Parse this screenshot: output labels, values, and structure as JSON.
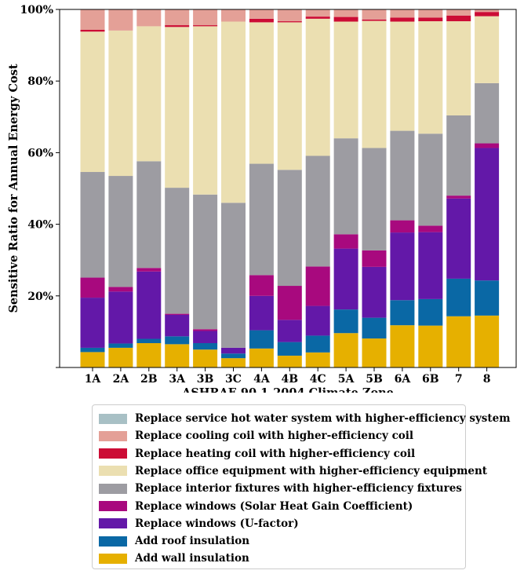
{
  "chart_data": {
    "type": "bar",
    "stacked": true,
    "xlabel": "ASHRAE 90.1-2004 Climate Zone",
    "ylabel": "Sensitive Ratio for Annual Energy Cost",
    "ylim": [
      0,
      100
    ],
    "y_ticks": [
      0,
      20,
      40,
      60,
      80,
      100
    ],
    "y_tick_labels": [
      "",
      "20%",
      "40%",
      "60%",
      "80%",
      "100%"
    ],
    "categories": [
      "1A",
      "2A",
      "2B",
      "3A",
      "3B",
      "3C",
      "4A",
      "4B",
      "4C",
      "5A",
      "5B",
      "6A",
      "6B",
      "7",
      "8"
    ],
    "grid": false,
    "legend_position": "below",
    "series": [
      {
        "name": "Add wall insulation",
        "color": "#e6b000",
        "values": [
          4.3,
          5.5,
          6.8,
          6.5,
          5.0,
          2.6,
          5.3,
          3.3,
          4.2,
          9.6,
          8.1,
          11.8,
          11.7,
          14.3,
          14.5
        ]
      },
      {
        "name": "Add roof insulation",
        "color": "#0a68a5",
        "values": [
          1.2,
          1.2,
          1.2,
          2.2,
          1.8,
          1.3,
          5.1,
          3.8,
          4.7,
          6.6,
          5.8,
          7.0,
          7.4,
          10.5,
          9.8
        ]
      },
      {
        "name": "Replace windows (U-factor)",
        "color": "#6318a8",
        "values": [
          14.0,
          14.5,
          18.8,
          6.0,
          3.4,
          1.6,
          9.6,
          6.2,
          8.3,
          17.0,
          14.2,
          18.9,
          18.7,
          22.4,
          37.0
        ]
      },
      {
        "name": "Replace windows (Solar Heat Gain Coefficient)",
        "color": "#a8097e",
        "values": [
          5.6,
          1.3,
          1.0,
          0.3,
          0.5,
          0.0,
          5.8,
          9.5,
          11.0,
          4.0,
          4.6,
          3.4,
          1.8,
          0.8,
          1.3
        ]
      },
      {
        "name": "Replace interior fixtures with higher-efficiency fixtures",
        "color": "#9d9ca2",
        "values": [
          29.5,
          31.0,
          29.8,
          35.2,
          37.6,
          40.5,
          31.1,
          32.4,
          30.9,
          26.8,
          28.6,
          25.0,
          25.7,
          22.4,
          16.8
        ]
      },
      {
        "name": "Replace office equipment with higher-efficiency equipment",
        "color": "#ebdfb1",
        "values": [
          39.2,
          40.6,
          37.7,
          44.9,
          47.0,
          50.6,
          39.5,
          41.2,
          38.3,
          32.6,
          35.5,
          30.5,
          31.4,
          26.3,
          18.7
        ]
      },
      {
        "name": "Replace heating coil with higher-efficiency coil",
        "color": "#cc0c35",
        "values": [
          0.5,
          0.0,
          0.0,
          0.5,
          0.3,
          0.0,
          1.0,
          0.3,
          0.6,
          1.3,
          0.4,
          1.1,
          1.0,
          1.6,
          1.2
        ]
      },
      {
        "name": "Replace cooling coil with higher-efficiency coil",
        "color": "#e4a097",
        "values": [
          5.7,
          5.9,
          4.7,
          4.4,
          4.4,
          3.4,
          2.6,
          3.3,
          2.0,
          2.1,
          2.8,
          2.3,
          2.3,
          1.7,
          0.7
        ]
      },
      {
        "name": "Replace service hot water system with higher-efficiency system",
        "color": "#a8c0c5",
        "values": [
          0.0,
          0.0,
          0.0,
          0.0,
          0.0,
          0.0,
          0.0,
          0.0,
          0.0,
          0.0,
          0.0,
          0.0,
          0.0,
          0.0,
          0.0
        ]
      }
    ]
  }
}
